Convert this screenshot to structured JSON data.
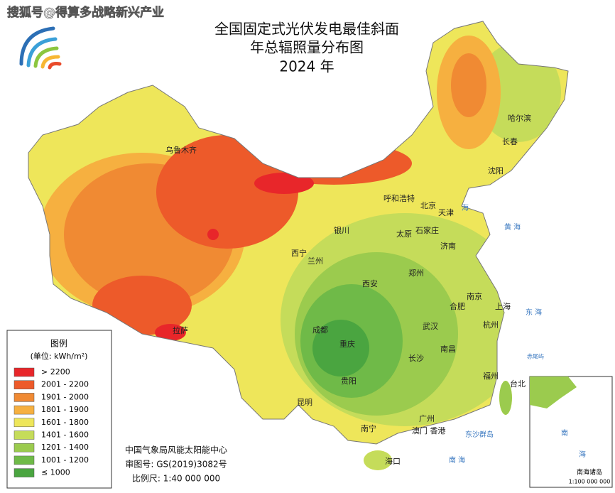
{
  "watermark": "搜狐号@得算多战略新兴产业",
  "title": [
    "全国固定式光伏发电最佳斜面",
    "年总辐照量分布图",
    "2024 年"
  ],
  "legend": {
    "title": "图例",
    "unit": "(单位: kWh/m²)",
    "items": [
      {
        "label": "> 2200",
        "color": "#e8262a"
      },
      {
        "label": "2001 - 2200",
        "color": "#ed5a2a"
      },
      {
        "label": "1901 - 2000",
        "color": "#f08a33"
      },
      {
        "label": "1801 - 1900",
        "color": "#f6b040"
      },
      {
        "label": "1601 - 1800",
        "color": "#eee65a"
      },
      {
        "label": "1401 - 1600",
        "color": "#c5dc5a"
      },
      {
        "label": "1201 - 1400",
        "color": "#9bcb4e"
      },
      {
        "label": "1001 - 1200",
        "color": "#6fba48"
      },
      {
        "label": "≤ 1000",
        "color": "#4aa540"
      }
    ]
  },
  "footer": [
    "中国气象局风能太阳能中心",
    "审图号: GS(2019)3082号",
    "比例尺: 1:40 000 000"
  ],
  "cities": [
    "乌鲁木齐",
    "呼和浩特",
    "北京",
    "天津",
    "银川",
    "太原",
    "石家庄",
    "济南",
    "西宁",
    "兰州",
    "郑州",
    "西安",
    "南京",
    "合肥",
    "上海",
    "拉萨",
    "成都",
    "武汉",
    "杭州",
    "重庆",
    "南昌",
    "长沙",
    "福州",
    "贵阳",
    "台北",
    "昆明",
    "广州",
    "南宁",
    "澳门 香港",
    "海口",
    "哈尔滨",
    "长春",
    "沈阳"
  ],
  "seas": [
    "海",
    "黄 海",
    "东 海",
    "东沙群岛",
    "南 海",
    "赤尾屿"
  ],
  "inset": {
    "title": "南海诸岛",
    "scale": "1:100 000 000",
    "labels": [
      "南",
      "海"
    ]
  }
}
